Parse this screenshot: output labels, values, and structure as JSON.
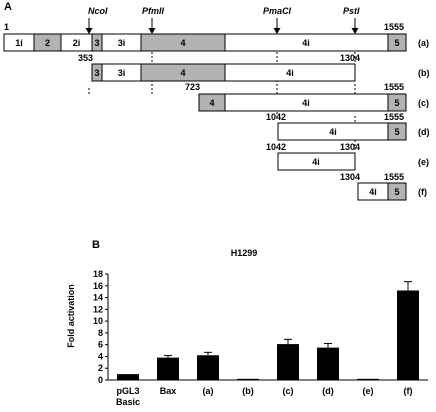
{
  "panel_a": {
    "label": "A",
    "sites": [
      "NcoI",
      "PfmlI",
      "PmaCI",
      "PstI"
    ],
    "coords": {
      "start": "1",
      "end_a": "1555",
      "ncoI": "353",
      "pstI_b": "1304",
      "c_start": "723",
      "c_end": "1555",
      "d_start": "1042",
      "d_end": "1555",
      "e_start": "1042",
      "e_end": "1304",
      "f_start": "1304",
      "f_end": "1555"
    },
    "rows": [
      {
        "label": "(a)",
        "segments": [
          "1i",
          "2",
          "2i",
          "3",
          "3i",
          "4",
          "4i",
          "5"
        ]
      },
      {
        "label": "(b)",
        "segments": [
          "3",
          "3i",
          "4",
          "4i"
        ]
      },
      {
        "label": "(c)",
        "segments": [
          "4",
          "4i",
          "5"
        ]
      },
      {
        "label": "(d)",
        "segments": [
          "4i",
          "5"
        ]
      },
      {
        "label": "(e)",
        "segments": [
          "4i"
        ]
      },
      {
        "label": "(f)",
        "segments": [
          "4i",
          "5"
        ]
      }
    ],
    "colors": {
      "exon_fill": "#b3b3b3",
      "intron_fill": "#ffffff",
      "stroke": "#000000"
    }
  },
  "panel_b": {
    "label": "B",
    "chart_data": {
      "type": "bar",
      "title": "H1299",
      "ylabel": "Fold activation",
      "xlabel": "",
      "categories": [
        "pGL3 Basic",
        "Bax",
        "(a)",
        "(b)",
        "(c)",
        "(d)",
        "(e)",
        "(f)"
      ],
      "category_lines": [
        [
          "pGL3",
          "Basic"
        ],
        [
          "Bax"
        ],
        [
          "(a)"
        ],
        [
          "(b)"
        ],
        [
          "(c)"
        ],
        [
          "(d)"
        ],
        [
          "(e)"
        ],
        [
          "(f)"
        ]
      ],
      "values": [
        1.0,
        3.8,
        4.2,
        0.2,
        6.1,
        5.5,
        0.2,
        15.2
      ],
      "errors": [
        0,
        0.35,
        0.5,
        0,
        0.8,
        0.7,
        0,
        1.5
      ],
      "ylim": [
        0,
        18
      ],
      "yticks": [
        0,
        2,
        4,
        6,
        8,
        10,
        12,
        14,
        16,
        18
      ],
      "bar_color": "#000000",
      "grid": false
    }
  }
}
